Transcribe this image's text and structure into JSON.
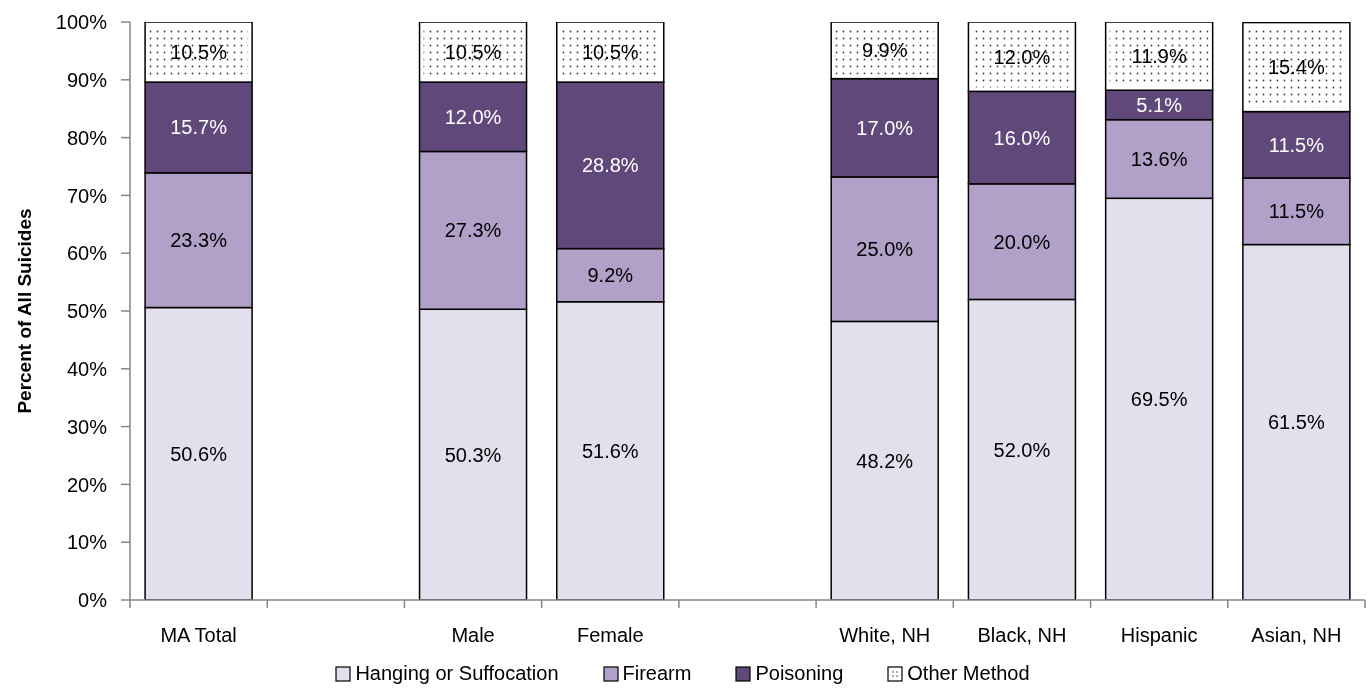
{
  "chart_data": {
    "type": "bar",
    "stacked": true,
    "ylabel": "Percent of All Suicides",
    "categories": [
      "MA Total",
      null,
      "Male",
      "Female",
      null,
      "White, NH",
      "Black, NH",
      "Hispanic",
      "Asian, NH"
    ],
    "series": [
      {
        "name": "Hanging or Suffocation",
        "color": "#e4dfec",
        "values": [
          50.6,
          null,
          50.3,
          51.6,
          null,
          48.2,
          52.0,
          69.5,
          61.5
        ],
        "value_labels": [
          "50.6%",
          null,
          "50.3%",
          "51.6%",
          null,
          "48.2%",
          "52.0%",
          "69.5%",
          "61.5%"
        ]
      },
      {
        "name": "Firearm",
        "color": "#b1a0c7",
        "values": [
          23.3,
          null,
          27.3,
          9.2,
          null,
          25.0,
          20.0,
          13.6,
          11.5
        ],
        "value_labels": [
          "23.3%",
          null,
          "27.3%",
          "9.2%",
          null,
          "25.0%",
          "20.0%",
          "13.6%",
          "11.5%"
        ]
      },
      {
        "name": "Poisoning",
        "color": "#60497a",
        "values": [
          15.7,
          null,
          12.0,
          28.8,
          null,
          17.0,
          16.0,
          5.1,
          11.5
        ],
        "value_labels": [
          "15.7%",
          null,
          "12.0%",
          "28.8%",
          null,
          "17.0%",
          "16.0%",
          "5.1%",
          "11.5%"
        ]
      },
      {
        "name": "Other Method",
        "color": "#ffffff",
        "values": [
          10.5,
          null,
          10.5,
          10.5,
          null,
          9.9,
          12.0,
          11.9,
          15.4
        ],
        "value_labels": [
          "10.5%",
          null,
          "10.5%",
          "10.5%",
          null,
          "9.9%",
          "12.0%",
          "11.9%",
          "15.4%"
        ]
      }
    ],
    "ylim": [
      0,
      100
    ],
    "yticks": [
      {
        "value": 0,
        "label": "0%"
      },
      {
        "value": 10,
        "label": "10%"
      },
      {
        "value": 20,
        "label": "20%"
      },
      {
        "value": 30,
        "label": "30%"
      },
      {
        "value": 40,
        "label": "40%"
      },
      {
        "value": 50,
        "label": "50%"
      },
      {
        "value": 60,
        "label": "60%"
      },
      {
        "value": 70,
        "label": "70%"
      },
      {
        "value": 80,
        "label": "80%"
      },
      {
        "value": 90,
        "label": "90%"
      },
      {
        "value": 100,
        "label": "100%"
      }
    ],
    "legend": "bottom"
  }
}
